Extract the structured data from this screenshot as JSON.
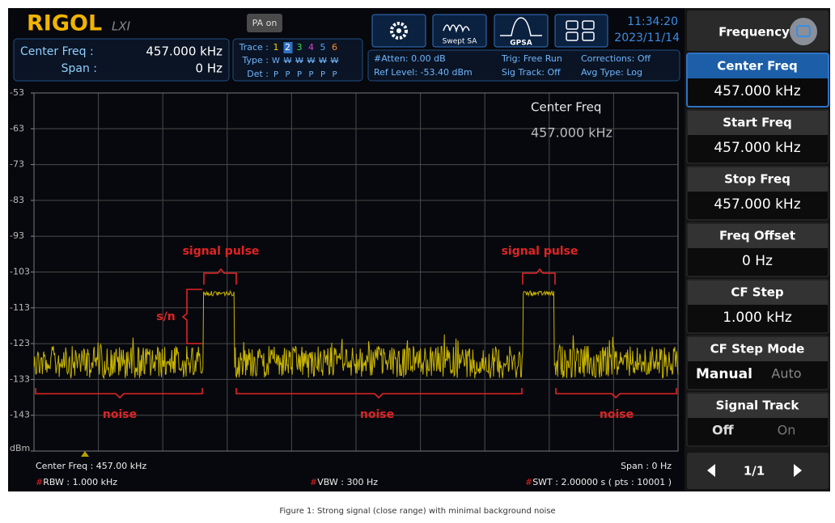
{
  "header": {
    "brand": "RIGOL",
    "lxi": "LXI",
    "pa": "PA on",
    "center_freq_label": "Center Freq :",
    "center_freq_value": "457.000 kHz",
    "span_label": "Span :",
    "span_value": "0 Hz",
    "trace_label": "Trace :",
    "trace_nums": [
      "1",
      "2",
      "3",
      "4",
      "5",
      "6"
    ],
    "type_label": "Type :",
    "type_vals": [
      "W",
      "W",
      "W",
      "W",
      "W",
      "W"
    ],
    "det_label": "Det :",
    "det_vals": [
      "P",
      "P",
      "P",
      "P",
      "P",
      "P"
    ],
    "atten": "#Atten: 0.00 dB",
    "ref_level": "Ref Level: -53.40 dBm",
    "trig": "Trig: Free Run",
    "sig_track": "Sig Track: Off",
    "corrections": "Corrections: Off",
    "avg_type": "Avg Type: Log",
    "modes": [
      "Swept SA",
      "GPSA"
    ],
    "time": "11:34:20",
    "date": "2023/11/14"
  },
  "plot": {
    "y_labels": [
      "-53",
      "-63",
      "-73",
      "-83",
      "-93",
      "-103",
      "-113",
      "-123",
      "-133",
      "-143",
      "dBm"
    ],
    "marker_label": "Center Freq",
    "marker_value": "457.000 kHz",
    "signal_pulse": [
      "signal pulse",
      "signal pulse"
    ],
    "sn": "s/n",
    "noise": [
      "noise",
      "noise",
      "noise"
    ]
  },
  "footer": {
    "center_freq": "Center Freq : 457.00 kHz",
    "span": "Span : 0 Hz",
    "rbw": {
      "mark": "#",
      "text": "RBW : 1.000 kHz"
    },
    "vbw": {
      "mark": "#",
      "text": "VBW : 300 Hz"
    },
    "swt": {
      "mark": "#",
      "text": "SWT : 2.00000 s ( pts : 10001 )"
    }
  },
  "menu": {
    "title": "Frequency",
    "items": [
      {
        "label": "Center Freq",
        "value": "457.000 kHz"
      },
      {
        "label": "Start Freq",
        "value": "457.000 kHz"
      },
      {
        "label": "Stop Freq",
        "value": "457.000 kHz"
      },
      {
        "label": "Freq Offset",
        "value": "0 Hz"
      },
      {
        "label": "CF Step",
        "value": "1.000 kHz"
      }
    ],
    "cf_step_mode": {
      "label": "CF Step Mode",
      "options": [
        "Manual",
        "Auto"
      ]
    },
    "signal_track": {
      "label": "Signal Track",
      "options": [
        "Off",
        "On"
      ]
    },
    "page": "1/1"
  },
  "caption": "Figure 1: Strong signal (close range) with minimal background noise"
}
